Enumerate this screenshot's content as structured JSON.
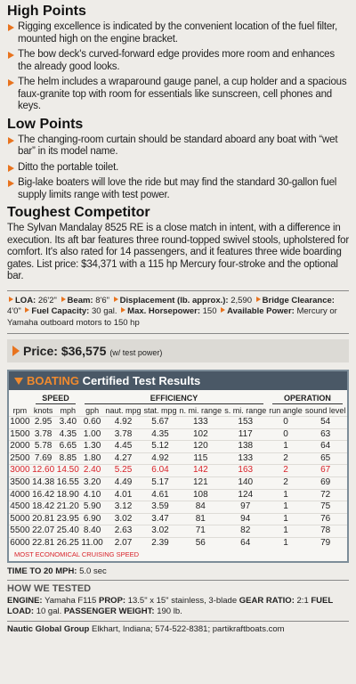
{
  "high_points": {
    "title": "High Points",
    "items": [
      "Rigging excellence is indicated by the convenient location of the fuel filter, mounted high on the engine bracket.",
      "The bow deck's curved-forward edge provides more room and enhances the already good looks.",
      "The helm includes a wraparound gauge panel, a cup holder and a spacious faux-granite top with room for essentials like sunscreen, cell phones and keys."
    ]
  },
  "low_points": {
    "title": "Low Points",
    "items": [
      "The changing-room curtain should be standard aboard any boat with “wet bar” in its model name.",
      "Ditto the portable toilet.",
      "Big-lake boaters will love the ride but may find the standard 30-gallon fuel supply limits range with test power."
    ]
  },
  "competitor": {
    "title": "Toughest Competitor",
    "text": "The Sylvan Mandalay 8525 RE is a close match in intent, with a difference in execution. Its aft bar features three round-topped swivel stools, upholstered for comfort. It's also rated for 14 passengers, and it features three wide boarding gates. List price: $34,371 with a 115 hp Mercury four-stroke and the optional bar."
  },
  "specs": [
    {
      "label": "LOA:",
      "value": "26'2\""
    },
    {
      "label": "Beam:",
      "value": "8'6\""
    },
    {
      "label": "Displacement (lb. approx.):",
      "value": "2,590"
    },
    {
      "label": "Bridge Clearance:",
      "value": "4'0\""
    },
    {
      "label": "Fuel Capacity:",
      "value": "30 gal."
    },
    {
      "label": "Max. Horsepower:",
      "value": "150"
    },
    {
      "label": "Available Power:",
      "value": "Mercury or Yamaha outboard motors to 150 hp"
    }
  ],
  "price": {
    "label": "Price:",
    "value": "$36,575",
    "note": "(w/ test power)"
  },
  "test_results": {
    "brand": "BOATING",
    "title": "Certified Test Results",
    "groups": [
      "SPEED",
      "EFFICIENCY",
      "OPERATION"
    ],
    "columns": [
      "rpm",
      "knots",
      "mph",
      "gph",
      "naut. mpg",
      "stat. mpg",
      "n. mi. range",
      "s. mi. range",
      "run angle",
      "sound level"
    ],
    "rows": [
      [
        "1000",
        "2.95",
        "3.40",
        "0.60",
        "4.92",
        "5.67",
        "133",
        "153",
        "0",
        "54"
      ],
      [
        "1500",
        "3.78",
        "4.35",
        "1.00",
        "3.78",
        "4.35",
        "102",
        "117",
        "0",
        "63"
      ],
      [
        "2000",
        "5.78",
        "6.65",
        "1.30",
        "4.45",
        "5.12",
        "120",
        "138",
        "1",
        "64"
      ],
      [
        "2500",
        "7.69",
        "8.85",
        "1.80",
        "4.27",
        "4.92",
        "115",
        "133",
        "2",
        "65"
      ],
      [
        "3000",
        "12.60",
        "14.50",
        "2.40",
        "5.25",
        "6.04",
        "142",
        "163",
        "2",
        "67"
      ],
      [
        "3500",
        "14.38",
        "16.55",
        "3.20",
        "4.49",
        "5.17",
        "121",
        "140",
        "2",
        "69"
      ],
      [
        "4000",
        "16.42",
        "18.90",
        "4.10",
        "4.01",
        "4.61",
        "108",
        "124",
        "1",
        "72"
      ],
      [
        "4500",
        "18.42",
        "21.20",
        "5.90",
        "3.12",
        "3.59",
        "84",
        "97",
        "1",
        "75"
      ],
      [
        "5000",
        "20.81",
        "23.95",
        "6.90",
        "3.02",
        "3.47",
        "81",
        "94",
        "1",
        "76"
      ],
      [
        "5500",
        "22.07",
        "25.40",
        "8.40",
        "2.63",
        "3.02",
        "71",
        "82",
        "1",
        "78"
      ],
      [
        "6000",
        "22.81",
        "26.25",
        "11.00",
        "2.07",
        "2.39",
        "56",
        "64",
        "1",
        "79"
      ]
    ],
    "footnote": "MOST ECONOMICAL CRUISING SPEED"
  },
  "time_to_speed": {
    "label": "TIME TO 20 MPH:",
    "value": "5.0 sec"
  },
  "how_we_tested": {
    "title": "HOW WE TESTED",
    "items": [
      {
        "label": "ENGINE:",
        "value": "Yamaha F115"
      },
      {
        "label": "PROP:",
        "value": "13.5\" x 15\" stainless, 3-blade"
      },
      {
        "label": "GEAR RATIO:",
        "value": "2:1"
      },
      {
        "label": "FUEL LOAD:",
        "value": "10 gal."
      },
      {
        "label": "PASSENGER WEIGHT:",
        "value": "190 lb."
      }
    ]
  },
  "footer": {
    "name": "Nautic Global Group",
    "text": "Elkhart, Indiana; 574-522-8381; partikraftboats.com"
  }
}
